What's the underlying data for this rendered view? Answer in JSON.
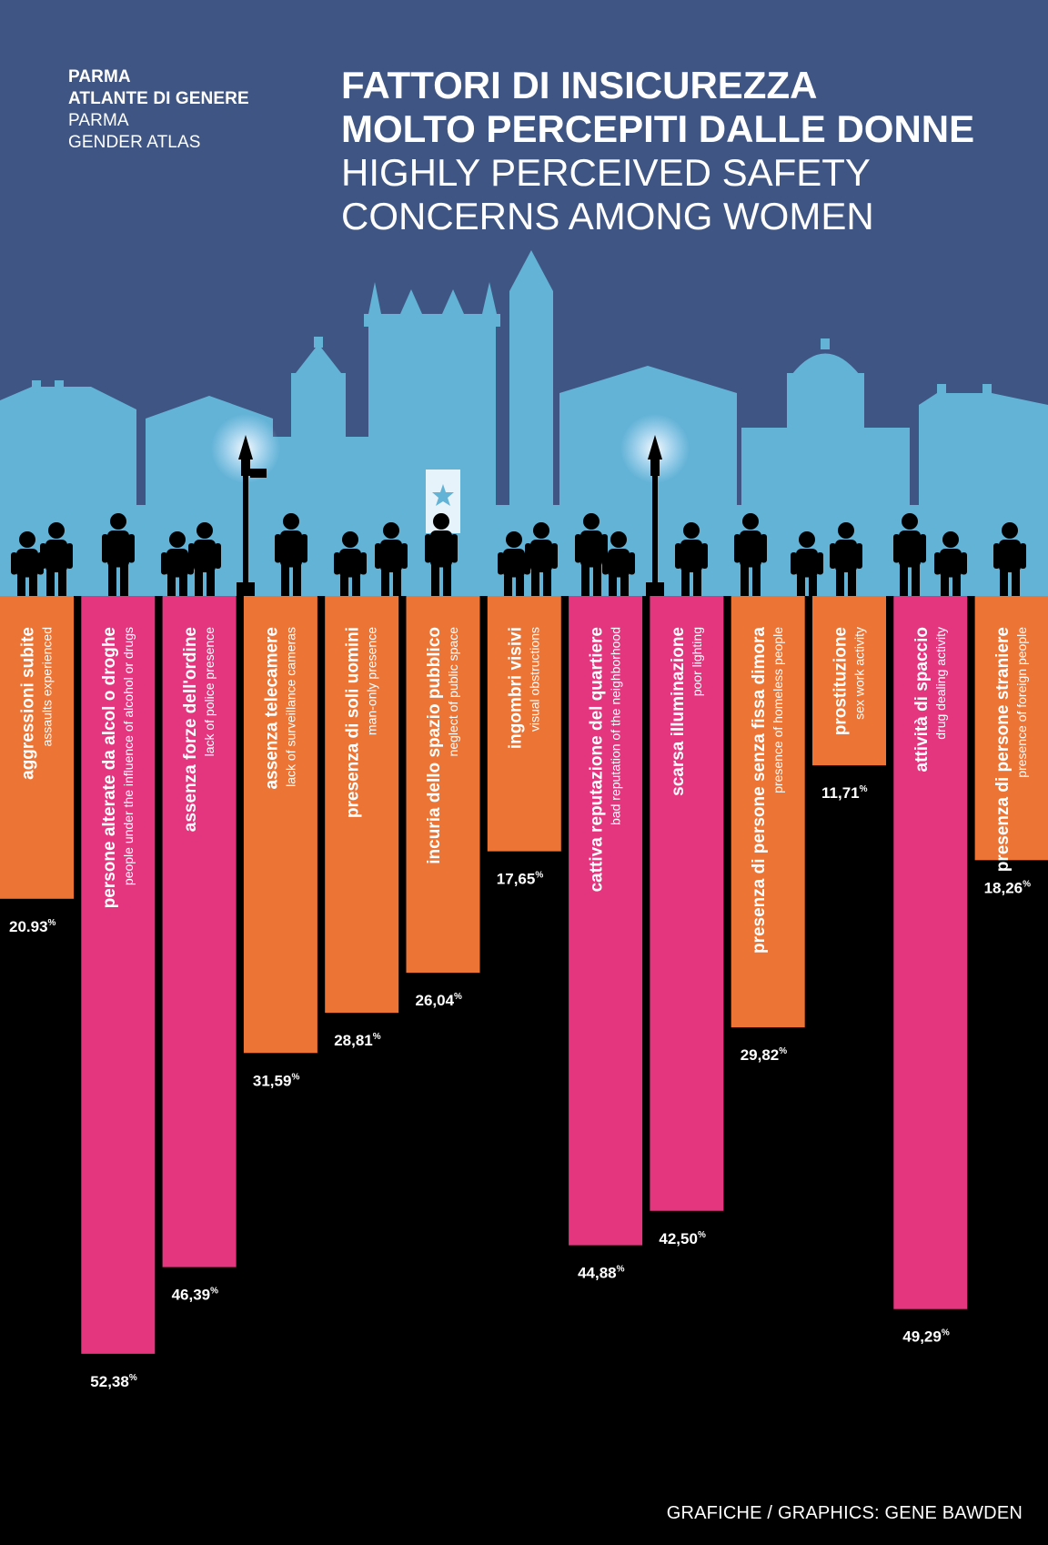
{
  "header": {
    "brand_line1": "PARMA",
    "brand_line2": "ATLANTE DI GENERE",
    "brand_line3": "PARMA",
    "brand_line4": "GENDER ATLAS",
    "title_it_1": "FATTORI DI INSICUREZZA",
    "title_it_2": "MOLTO PERCEPITI DALLE DONNE",
    "title_en_1": "HIGHLY PERCEIVED SAFETY",
    "title_en_2": "CONCERNS AMONG WOMEN"
  },
  "footer": {
    "credit": "GRAFICHE / GRAPHICS: GENE BAWDEN"
  },
  "colors": {
    "sky": "#3f5583",
    "skyline": "#63b3d7",
    "orange": "#ec7434",
    "pink": "#e3367f",
    "background": "#000000",
    "silhouette": "#000000"
  },
  "chart_data": {
    "type": "bar",
    "orientation": "vertical-downward",
    "unit": "%",
    "ylim": [
      0,
      100
    ],
    "categories": [
      {
        "label": "aggressioni subite",
        "label_en": "assaults experienced",
        "value": 20.93,
        "display": "20.93",
        "color": "orange"
      },
      {
        "label": "persone alterate da alcol o droghe",
        "label_en": "people under the influence of alcohol or drugs",
        "value": 52.38,
        "display": "52,38",
        "color": "pink"
      },
      {
        "label": "assenza forze dell'ordine",
        "label_en": "lack of police presence",
        "value": 46.39,
        "display": "46,39",
        "color": "pink"
      },
      {
        "label": "assenza telecamere",
        "label_en": "lack of surveillance cameras",
        "value": 31.59,
        "display": "31,59",
        "color": "orange"
      },
      {
        "label": "presenza di soli uomini",
        "label_en": "man-only presence",
        "value": 28.81,
        "display": "28,81",
        "color": "orange"
      },
      {
        "label": "incuria dello spazio pubblico",
        "label_en": "neglect of public space",
        "value": 26.04,
        "display": "26,04",
        "color": "orange"
      },
      {
        "label": "ingombri visivi",
        "label_en": "visual obstructions",
        "value": 17.65,
        "display": "17,65",
        "color": "orange"
      },
      {
        "label": "cattiva reputazione del quartiere",
        "label_en": "bad reputation of the neighborhood",
        "value": 44.88,
        "display": "44,88",
        "color": "pink"
      },
      {
        "label": "scarsa illuminazione",
        "label_en": "poor lighting",
        "value": 42.5,
        "display": "42,50",
        "color": "pink"
      },
      {
        "label": "presenza di persone senza fissa dimora",
        "label_en": "presence of homeless people",
        "value": 29.82,
        "display": "29,82",
        "color": "orange"
      },
      {
        "label": "prostituzione",
        "label_en": "sex work activity",
        "value": 11.71,
        "display": "11,71",
        "color": "orange"
      },
      {
        "label": "attività di spaccio",
        "label_en": "drug dealing activity",
        "value": 49.29,
        "display": "49,29",
        "color": "pink"
      },
      {
        "label": "presenza di persone straniere",
        "label_en": "presence of foreign people",
        "value": 18.26,
        "display": "18,26",
        "color": "orange"
      }
    ]
  }
}
